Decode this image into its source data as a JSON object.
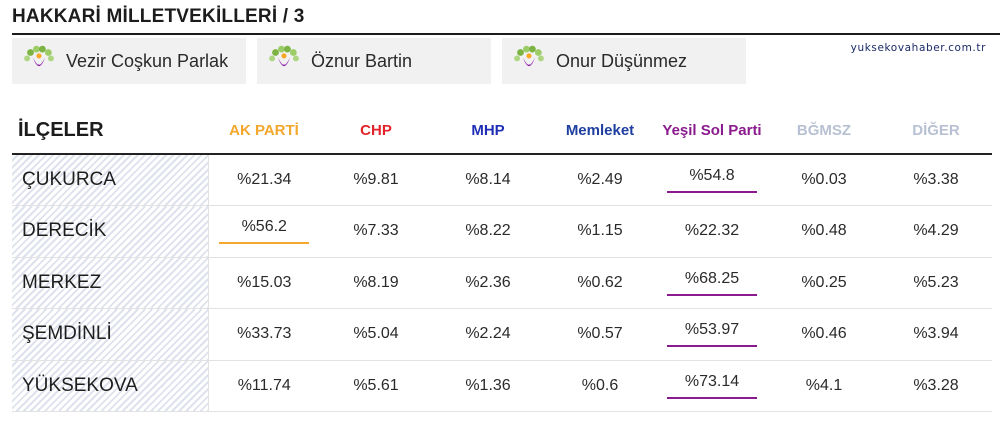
{
  "title": "HAKKARİ MİLLETVEKİLLERİ / 3",
  "source": "yuksekovahaber.com.tr",
  "candidates": [
    {
      "name": "Vezir Coşkun Parlak"
    },
    {
      "name": "Öznur Bartin"
    },
    {
      "name": "Onur Düşünmez"
    }
  ],
  "table": {
    "district_header": "İLÇELER",
    "parties": [
      {
        "label": "AK PARTİ",
        "color": "#f3a72c"
      },
      {
        "label": "CHP",
        "color": "#e3232b"
      },
      {
        "label": "MHP",
        "color": "#1f2fb5"
      },
      {
        "label": "Memleket",
        "color": "#1f3fa0"
      },
      {
        "label": "Yeşil Sol Parti",
        "color": "#8a1b8e"
      },
      {
        "label": "BĞMSZ",
        "color": "#b8c1d3"
      },
      {
        "label": "DİĞER",
        "color": "#b8c1d3"
      }
    ],
    "rows": [
      {
        "district": "ÇUKURCA",
        "values": [
          "%21.34",
          "%9.81",
          "%8.14",
          "%2.49",
          "%54.8",
          "%0.03",
          "%3.38"
        ],
        "winner": 4
      },
      {
        "district": "DERECİK",
        "values": [
          "%56.2",
          "%7.33",
          "%8.22",
          "%1.15",
          "%22.32",
          "%0.48",
          "%4.29"
        ],
        "winner": 0
      },
      {
        "district": "MERKEZ",
        "values": [
          "%15.03",
          "%8.19",
          "%2.36",
          "%0.62",
          "%68.25",
          "%0.25",
          "%5.23"
        ],
        "winner": 4
      },
      {
        "district": "ŞEMDİNLİ",
        "values": [
          "%33.73",
          "%5.04",
          "%2.24",
          "%0.57",
          "%53.97",
          "%0.46",
          "%3.94"
        ],
        "winner": 4
      },
      {
        "district": "YÜKSEKOVA",
        "values": [
          "%11.74",
          "%5.61",
          "%1.36",
          "%0.6",
          "%73.14",
          "%4.1",
          "%3.28"
        ],
        "winner": 4
      }
    ]
  }
}
